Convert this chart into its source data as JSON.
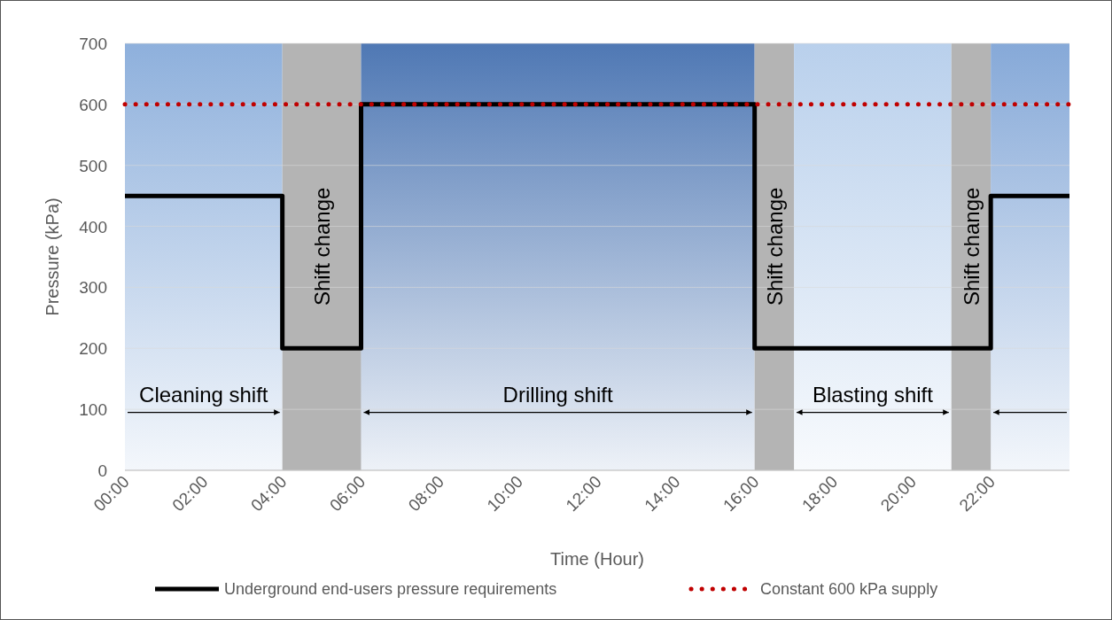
{
  "chart_data": {
    "type": "step",
    "xlabel": "Time (Hour)",
    "ylabel": "Pressure (kPa)",
    "xlim": [
      0,
      24
    ],
    "xticks": [
      {
        "value": 0,
        "label": "00:00"
      },
      {
        "value": 2,
        "label": "02:00"
      },
      {
        "value": 4,
        "label": "04:00"
      },
      {
        "value": 6,
        "label": "06:00"
      },
      {
        "value": 8,
        "label": "08:00"
      },
      {
        "value": 10,
        "label": "10:00"
      },
      {
        "value": 12,
        "label": "12:00"
      },
      {
        "value": 14,
        "label": "14:00"
      },
      {
        "value": 16,
        "label": "16:00"
      },
      {
        "value": 18,
        "label": "18:00"
      },
      {
        "value": 20,
        "label": "20:00"
      },
      {
        "value": 22,
        "label": "22:00"
      }
    ],
    "ylim": [
      0,
      700
    ],
    "yticks": [
      0,
      100,
      200,
      300,
      400,
      500,
      600,
      700
    ],
    "grid": "y",
    "legend": "bottom",
    "series": [
      {
        "name": "Underground end-users pressure requirements",
        "type": "step",
        "color": "#000000",
        "line_style": "solid",
        "x": [
          0,
          4,
          6,
          16,
          22,
          24
        ],
        "values": [
          450,
          200,
          600,
          200,
          450,
          450
        ]
      },
      {
        "name": "Constant 600 kPa supply",
        "type": "line",
        "color": "#c00000",
        "line_style": "dotted",
        "x": [
          0,
          24
        ],
        "values": [
          600,
          600
        ]
      }
    ],
    "bands": [
      {
        "axis": "x",
        "from": 0,
        "to": 4,
        "label": "Cleaning shift",
        "color": "#8eb0dc"
      },
      {
        "axis": "x",
        "from": 4,
        "to": 6,
        "label": "Shift change",
        "color": "#b4b4b4"
      },
      {
        "axis": "x",
        "from": 6,
        "to": 16,
        "label": "Drilling shift",
        "color": "#4f78b4"
      },
      {
        "axis": "x",
        "from": 16,
        "to": 17,
        "label": "Shift change",
        "color": "#b4b4b4"
      },
      {
        "axis": "x",
        "from": 17,
        "to": 21,
        "label": "Blasting shift",
        "color": "#b9d0ec"
      },
      {
        "axis": "x",
        "from": 21,
        "to": 22,
        "label": "Shift change",
        "color": "#b4b4b4"
      },
      {
        "axis": "x",
        "from": 22,
        "to": 24,
        "color": "#86a9d8"
      }
    ]
  }
}
